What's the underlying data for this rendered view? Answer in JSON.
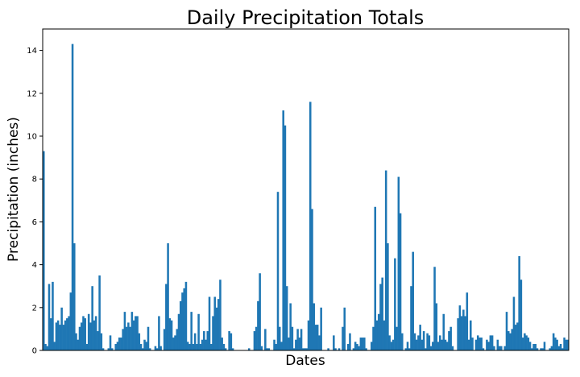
{
  "chart_data": {
    "type": "bar",
    "title": "Daily Precipitation Totals",
    "xlabel": "Dates",
    "ylabel": "Precipitation (inches)",
    "ylim": [
      0,
      15
    ],
    "yticks": [
      0,
      2,
      4,
      6,
      8,
      10,
      12,
      14
    ],
    "x_tick_labels": "hidden",
    "grid": false,
    "bar_color": "#1f77b4",
    "series": [
      {
        "values": [
          9.3,
          0.3,
          0.2,
          3.1,
          1.5,
          3.2,
          0.4,
          1.3,
          1.4,
          1.2,
          2.0,
          1.2,
          1.4,
          1.5,
          1.6,
          2.7,
          14.3,
          5.0,
          0.8,
          0.5,
          1.1,
          1.3,
          1.6,
          1.5,
          0.3,
          1.7,
          1.3,
          3.0,
          1.4,
          1.6,
          0.9,
          3.5,
          0.8,
          0.1,
          0.0,
          0.0,
          0.1,
          0.7,
          0.1,
          0.0,
          0.3,
          0.4,
          0.6,
          0.6,
          1.0,
          1.8,
          1.1,
          1.3,
          1.1,
          1.8,
          1.4,
          1.6,
          1.6,
          0.8,
          0.3,
          0.1,
          0.5,
          0.4,
          1.1,
          0.1,
          0.0,
          0.0,
          0.2,
          0.1,
          1.6,
          0.2,
          0.0,
          1.0,
          3.1,
          5.0,
          1.5,
          1.4,
          0.6,
          0.7,
          1.0,
          1.7,
          2.3,
          2.7,
          2.9,
          3.2,
          0.4,
          0.3,
          1.8,
          0.3,
          0.8,
          0.3,
          1.7,
          0.3,
          0.5,
          0.9,
          0.5,
          0.9,
          2.5,
          0.3,
          1.6,
          2.5,
          2.0,
          2.4,
          3.3,
          0.6,
          0.3,
          0.1,
          0.0,
          0.9,
          0.8,
          0.1,
          0.0,
          0.0,
          0.0,
          0.0,
          0.0,
          0.0,
          0.0,
          0.0,
          0.1,
          0.0,
          0.0,
          0.9,
          1.1,
          2.3,
          3.6,
          0.2,
          0.0,
          1.0,
          0.1,
          0.1,
          0.0,
          0.0,
          0.5,
          0.3,
          7.4,
          1.1,
          0.4,
          11.2,
          10.5,
          3.0,
          0.6,
          2.2,
          1.1,
          0.1,
          0.5,
          1.0,
          0.6,
          1.0,
          0.1,
          0.1,
          0.1,
          1.4,
          11.6,
          6.6,
          2.2,
          1.2,
          1.2,
          0.7,
          2.0,
          0.0,
          0.0,
          0.0,
          0.1,
          0.0,
          0.0,
          0.7,
          0.1,
          0.0,
          0.1,
          0.0,
          1.1,
          2.0,
          0.0,
          0.3,
          0.8,
          0.0,
          0.1,
          0.4,
          0.3,
          0.2,
          0.6,
          0.6,
          0.6,
          0.1,
          0.0,
          0.0,
          0.4,
          1.1,
          6.7,
          1.4,
          1.7,
          3.1,
          3.4,
          1.4,
          8.4,
          5.0,
          0.7,
          0.4,
          0.5,
          4.3,
          1.1,
          8.1,
          6.4,
          0.8,
          0.0,
          0.1,
          0.4,
          0.1,
          3.0,
          4.6,
          0.8,
          0.5,
          0.7,
          1.2,
          0.5,
          0.9,
          0.1,
          0.8,
          0.7,
          0.2,
          0.4,
          3.9,
          2.2,
          0.4,
          0.7,
          0.5,
          1.7,
          0.5,
          0.4,
          0.9,
          1.1,
          0.2,
          0.0,
          0.0,
          1.5,
          2.1,
          1.6,
          1.9,
          1.6,
          2.7,
          0.5,
          1.4,
          0.6,
          0.0,
          0.5,
          0.7,
          0.6,
          0.6,
          0.1,
          0.0,
          0.5,
          0.4,
          0.7,
          0.7,
          0.2,
          0.0,
          0.5,
          0.2,
          0.2,
          0.0,
          0.2,
          1.8,
          0.9,
          0.8,
          1.0,
          2.5,
          1.2,
          1.3,
          4.4,
          3.3,
          0.6,
          0.8,
          0.7,
          0.6,
          0.4,
          0.1,
          0.3,
          0.3,
          0.1,
          0.0,
          0.1,
          0.1,
          0.4,
          0.0,
          0.0,
          0.1,
          0.2,
          0.8,
          0.6,
          0.5,
          0.2,
          0.3,
          0.1,
          0.6,
          0.5,
          0.5
        ]
      }
    ]
  }
}
